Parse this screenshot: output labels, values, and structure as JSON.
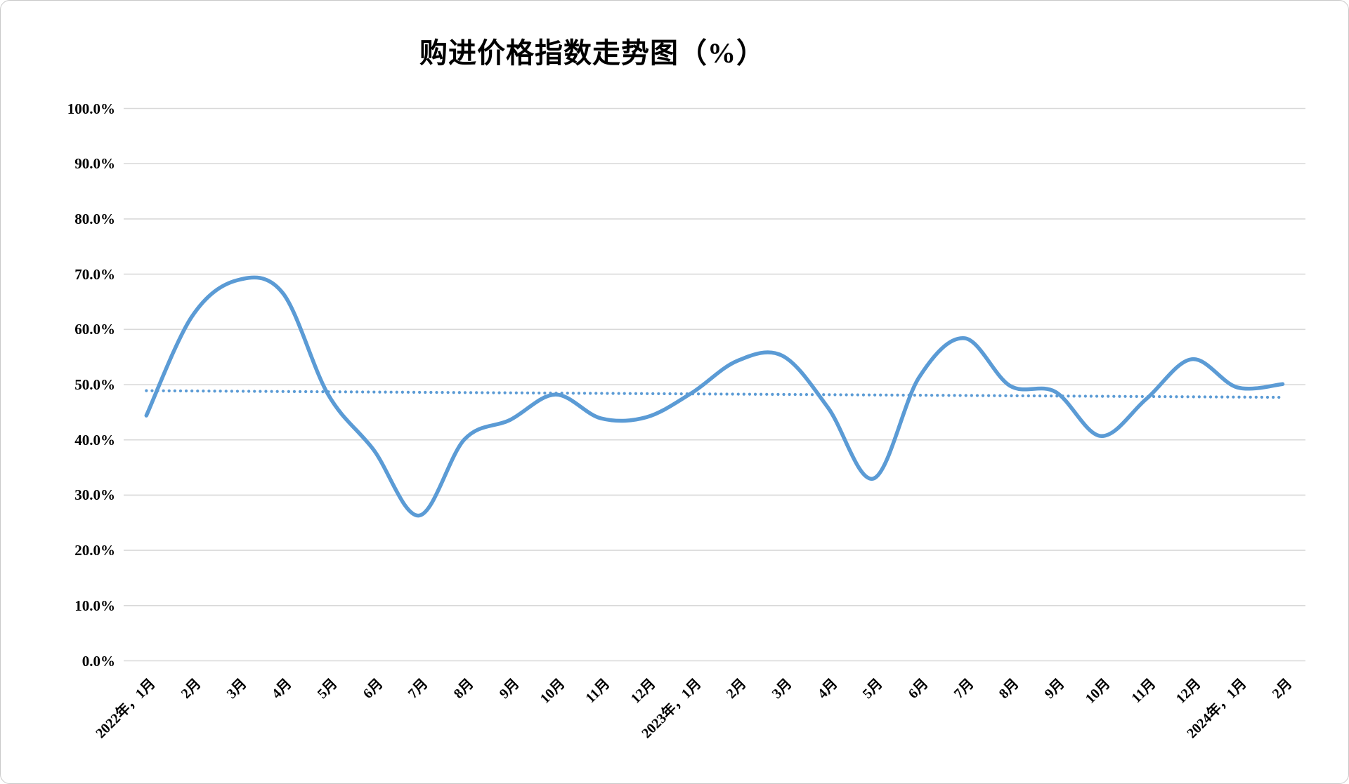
{
  "title": "购进价格指数走势图（%）",
  "chart_data": {
    "type": "line",
    "title": "购进价格指数走势图（%）",
    "x": [
      "2022年，1月",
      "2月",
      "3月",
      "4月",
      "5月",
      "6月",
      "7月",
      "8月",
      "9月",
      "10月",
      "11月",
      "12月",
      "2023年，1月",
      "2月",
      "3月",
      "4月",
      "5月",
      "6月",
      "7月",
      "8月",
      "9月",
      "10月",
      "11月",
      "12月",
      "2024年，1月",
      "2月"
    ],
    "series": [
      {
        "values": [
          44.4,
          62.3,
          68.9,
          66.6,
          48.2,
          38.2,
          26.3,
          40.1,
          43.6,
          48.2,
          43.9,
          44.1,
          48.5,
          54.3,
          55.2,
          45.8,
          33.0,
          51.3,
          58.4,
          49.8,
          48.7,
          40.7,
          47.4,
          54.6,
          49.5,
          50.1
        ]
      }
    ],
    "trendline": {
      "style": "dotted",
      "start": 48.9,
      "end": 47.7
    },
    "ylim": [
      0,
      100
    ],
    "ytick_step": 10,
    "yticklabels": [
      "100.0%",
      "90.0%",
      "80.0%",
      "70.0%",
      "60.0%",
      "50.0%",
      "40.0%",
      "30.0%",
      "20.0%",
      "10.0%",
      "0.0%"
    ],
    "grid": true,
    "legend": "none",
    "smooth": true,
    "line_color": "#5B9BD5",
    "trend_color": "#5B9BD5",
    "grid_color": "#D9D9D9",
    "text_color": "#000000"
  }
}
